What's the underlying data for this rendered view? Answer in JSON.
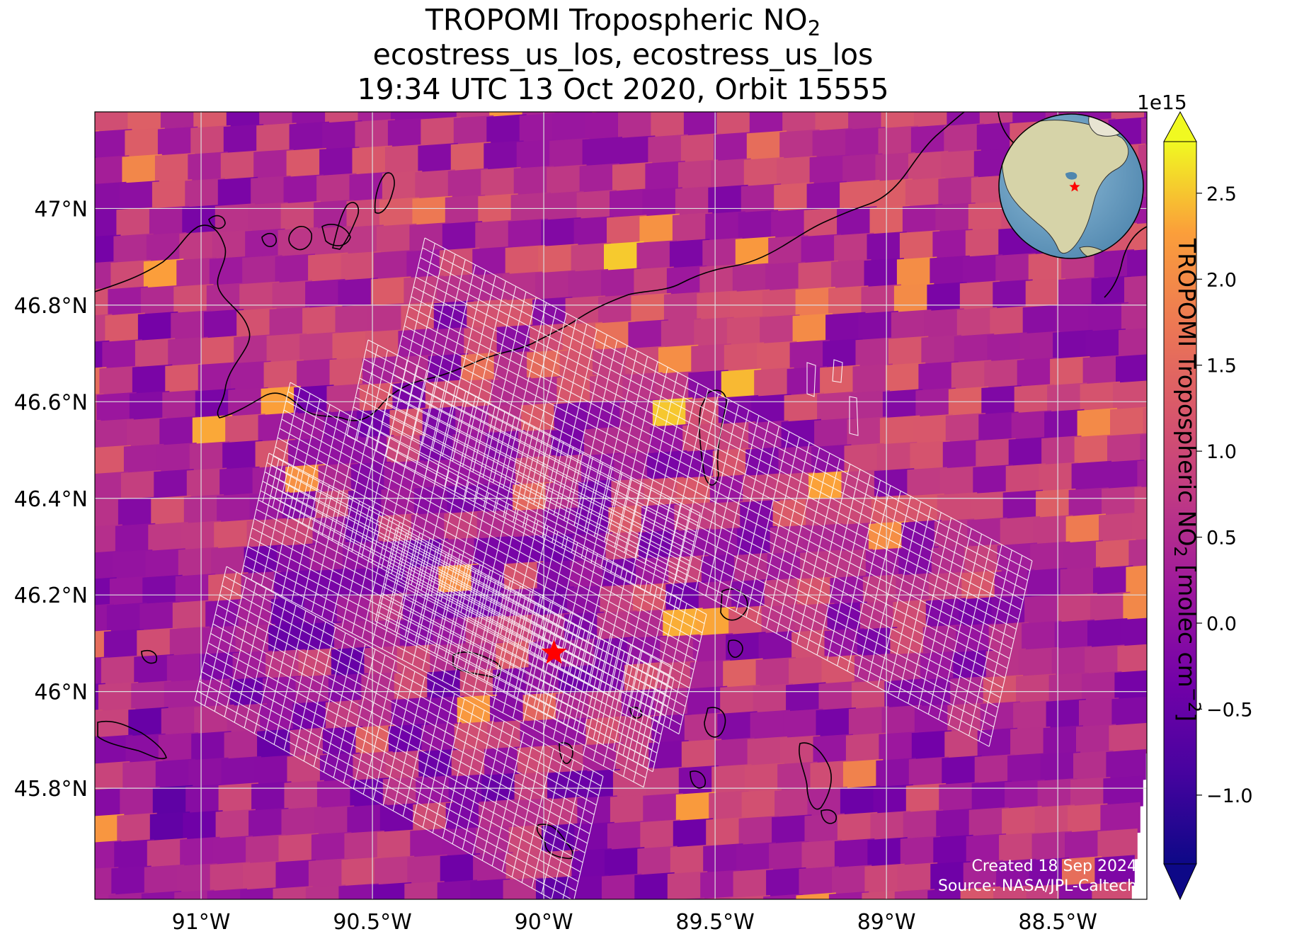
{
  "title": {
    "line1_prefix": "TROPOMI Tropospheric NO",
    "line1_sub": "2",
    "line2": "ecostress_us_los, ecostress_us_los",
    "line3": "19:34 UTC 13 Oct 2020, Orbit 15555"
  },
  "credits": {
    "created": "Created 18 Sep 2024",
    "source": "Source: NASA/JPL-Caltech"
  },
  "colorbar": {
    "label_prefix": "TROPOMI Tropospheric NO",
    "label_sub": "2",
    "label_mid": " [molec cm",
    "label_sup": "−2",
    "label_end": "]",
    "exponent": "1e15",
    "colormap": "plasma",
    "extend": "both",
    "range": [
      -1.4,
      2.8
    ],
    "ticks": [
      {
        "value": -1.0,
        "label": "−1.0"
      },
      {
        "value": -0.5,
        "label": "−0.5"
      },
      {
        "value": 0.0,
        "label": "0.0"
      },
      {
        "value": 0.5,
        "label": "0.5"
      },
      {
        "value": 1.0,
        "label": "1.0"
      },
      {
        "value": 1.5,
        "label": "1.5"
      },
      {
        "value": 2.0,
        "label": "2.0"
      },
      {
        "value": 2.5,
        "label": "2.5"
      }
    ]
  },
  "chart_data": {
    "type": "heatmap",
    "title": "TROPOMI Tropospheric NO2",
    "variable": "TROPOMI Tropospheric NO2 [molec cm-2]",
    "units_scale": "1e15",
    "lon_range": [
      -91.31,
      -88.24
    ],
    "lat_range": [
      45.57,
      47.2
    ],
    "x_ticks": [
      {
        "value": -91.0,
        "label": "91°W"
      },
      {
        "value": -90.5,
        "label": "90.5°W"
      },
      {
        "value": -90.0,
        "label": "90°W"
      },
      {
        "value": -89.5,
        "label": "89.5°W"
      },
      {
        "value": -89.0,
        "label": "89°W"
      },
      {
        "value": -88.5,
        "label": "88.5°W"
      }
    ],
    "y_ticks": [
      {
        "value": 47.0,
        "label": "47°N"
      },
      {
        "value": 46.8,
        "label": "46.8°N"
      },
      {
        "value": 46.6,
        "label": "46.6°N"
      },
      {
        "value": 46.4,
        "label": "46.4°N"
      },
      {
        "value": 46.2,
        "label": "46.2°N"
      },
      {
        "value": 46.0,
        "label": "46°N"
      },
      {
        "value": 45.8,
        "label": "45.8°N"
      }
    ],
    "grid": true,
    "site_marker": {
      "lon": -89.97,
      "lat": 46.08,
      "symbol": "star",
      "color": "#ff0000"
    },
    "inset_globe": {
      "position": "top-right",
      "marker": "star",
      "marker_color": "#ff0000"
    },
    "value_range_shown": [
      -1.3,
      2.8
    ]
  },
  "colors": {
    "grid": "#dddddd",
    "footprint_outline": "#ffffff",
    "coastline": "#000000",
    "marker": "#ff0000"
  }
}
